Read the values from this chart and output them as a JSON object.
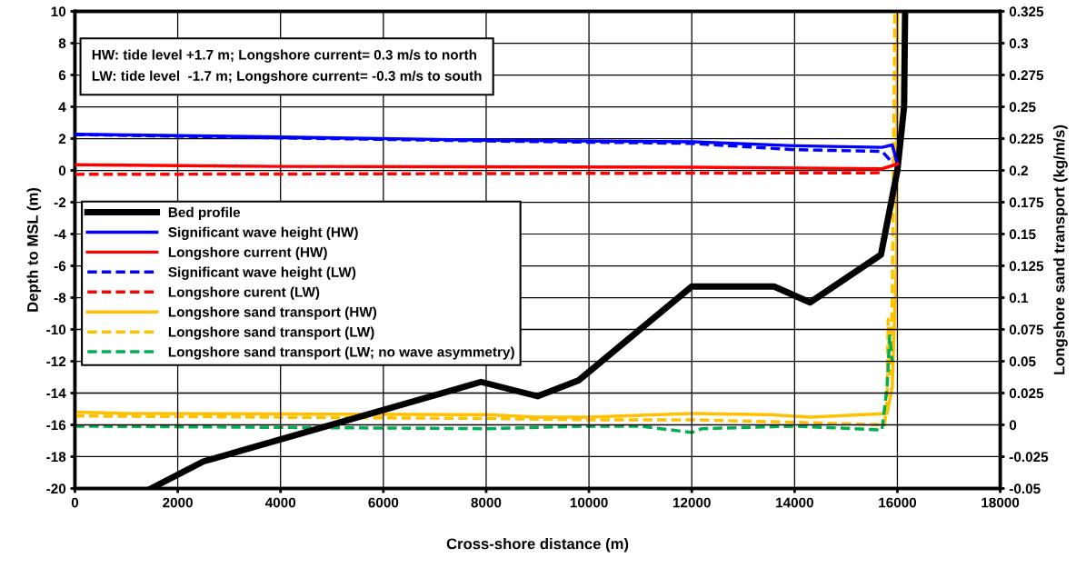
{
  "chart_data": {
    "type": "line",
    "xlabel": "Cross-shore distance (m)",
    "ylabel": "Depth to MSL (m)",
    "y2label": "Longshore sand transport (kg/m/s)",
    "annotations": [
      "HW: tide level +1.7 m; Longshore current= 0.3 m/s to north",
      "LW: tide level  -1.7 m; Longshore current= -0.3 m/s to south"
    ],
    "xlim": [
      0,
      18000
    ],
    "xticks": [
      0,
      2000,
      4000,
      6000,
      8000,
      10000,
      12000,
      14000,
      16000,
      18000
    ],
    "ylim": [
      -20,
      10
    ],
    "yticks": [
      -20,
      -18,
      -16,
      -14,
      -12,
      -10,
      -8,
      -6,
      -4,
      -2,
      0,
      2,
      4,
      6,
      8,
      10
    ],
    "y2lim": [
      -0.05,
      0.325
    ],
    "y2ticks": [
      -0.05,
      -0.025,
      0,
      0.025,
      0.05,
      0.075,
      0.1,
      0.125,
      0.15,
      0.175,
      0.2,
      0.225,
      0.25,
      0.275,
      0.3,
      0.325
    ],
    "grid": true,
    "legend": "left",
    "marker": "none",
    "series": [
      {
        "name": "Bed profile",
        "color": "#000000",
        "line_style": "solid",
        "x": [
          1480,
          2500,
          7900,
          9000,
          9800,
          12000,
          13600,
          14300,
          15680,
          16000,
          16130,
          16150
        ],
        "values": [
          -20,
          -18.3,
          -13.3,
          -14.2,
          -13.2,
          -7.3,
          -7.3,
          -8.3,
          -5.3,
          0,
          4,
          10
        ]
      },
      {
        "name": "Significant wave height (HW)",
        "color": "#0000ff",
        "line_style": "solid",
        "x": [
          0,
          4000,
          8000,
          12000,
          14000,
          15700,
          15900,
          16000
        ],
        "values": [
          2.27,
          2.1,
          1.9,
          1.8,
          1.55,
          1.45,
          1.6,
          0.4
        ]
      },
      {
        "name": "Longshore current (HW)",
        "color": "#ff0000",
        "line_style": "solid",
        "x": [
          0,
          4000,
          12000,
          15700,
          15900,
          16000
        ],
        "values": [
          0.36,
          0.25,
          0.2,
          0.1,
          0.3,
          0.4
        ]
      },
      {
        "name": "Significant wave height (LW)",
        "color": "#0000ff",
        "line_style": "dashed",
        "x": [
          0,
          8000,
          12000,
          14000,
          15700,
          15900
        ],
        "values": [
          2.25,
          1.85,
          1.7,
          1.3,
          1.2,
          0.5
        ]
      },
      {
        "name": "Longshore curent (LW)",
        "color": "#ff0000",
        "line_style": "dashed",
        "x": [
          0,
          8000,
          15700
        ],
        "values": [
          -0.25,
          -0.2,
          -0.15
        ]
      },
      {
        "name": "Longshore sand transport (HW)",
        "color": "#ffc000",
        "line_style": "solid",
        "axis": "y2",
        "x": [
          0,
          1000,
          8000,
          9000,
          10000,
          12000,
          13500,
          14300,
          15800,
          15900,
          15980,
          16000
        ],
        "values": [
          0.01,
          0.009,
          0.008,
          0.006,
          0.006,
          0.009,
          0.008,
          0.006,
          0.009,
          0.03,
          0.125,
          0.325
        ]
      },
      {
        "name": "Longshore sand transport (LW)",
        "color": "#ffc000",
        "line_style": "dashed",
        "axis": "y2",
        "x": [
          0,
          8000,
          10000,
          12000,
          14000,
          15750,
          15800,
          15820,
          15860,
          15900,
          15950
        ],
        "values": [
          0.007,
          0.005,
          0.004,
          0.004,
          0.002,
          0.0,
          0.02,
          0.083,
          0.04,
          0.1,
          0.325
        ]
      },
      {
        "name": "Longshore sand transport (LW; no wave asymmetry)",
        "color": "#00b050",
        "line_style": "dashed",
        "axis": "y2",
        "x": [
          0,
          4000,
          8000,
          10000,
          11000,
          12000,
          12200,
          14000,
          15700,
          15800,
          15850,
          15900
        ],
        "values": [
          -0.001,
          -0.002,
          -0.003,
          -0.001,
          -0.001,
          -0.006,
          -0.003,
          -0.001,
          -0.004,
          0.03,
          0.07,
          0.05
        ]
      }
    ]
  }
}
